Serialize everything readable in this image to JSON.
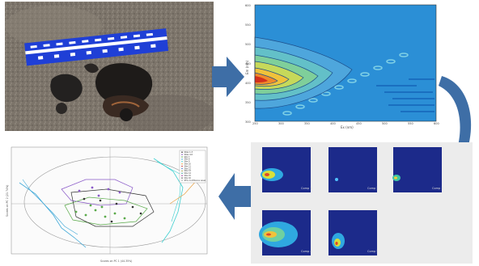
{
  "heatmap": {
    "xlabel": "Ex (nm)",
    "ylabel": "Em (nm)",
    "x_ticks": [
      "250",
      "300",
      "350",
      "400",
      "450",
      "500",
      "550",
      "600"
    ],
    "y_ticks": [
      "600",
      "550",
      "500",
      "450",
      "400",
      "350",
      "300"
    ]
  },
  "components": [
    {
      "label": "Comp 1"
    },
    {
      "label": "Comp 2"
    },
    {
      "label": "Comp 3"
    },
    {
      "label": "Comp 4"
    },
    {
      "label": "Comp 5"
    }
  ],
  "pca": {
    "xlabel": "Scores on PC 1 (44.35%)",
    "ylabel": "Scores on PC 2 (21.74%)",
    "legend": [
      "Sites 1-3",
      "Sites 4-6",
      "Site 7",
      "Site 8",
      "Site 9",
      "Site 10",
      "Site 11",
      "Site 12",
      "Site 13",
      "Site 14",
      "Site 15",
      "Site 16",
      "95% Confidence Level"
    ]
  },
  "colors": {
    "arrow": "#3e6ea6",
    "photo_card": "#1f3fd6",
    "heatmap_bg": "#2b8fd6",
    "component_bg": "#1c2a8a"
  },
  "icons": [
    "right-arrow-icon",
    "curved-arrow-icon",
    "left-arrow-icon"
  ]
}
